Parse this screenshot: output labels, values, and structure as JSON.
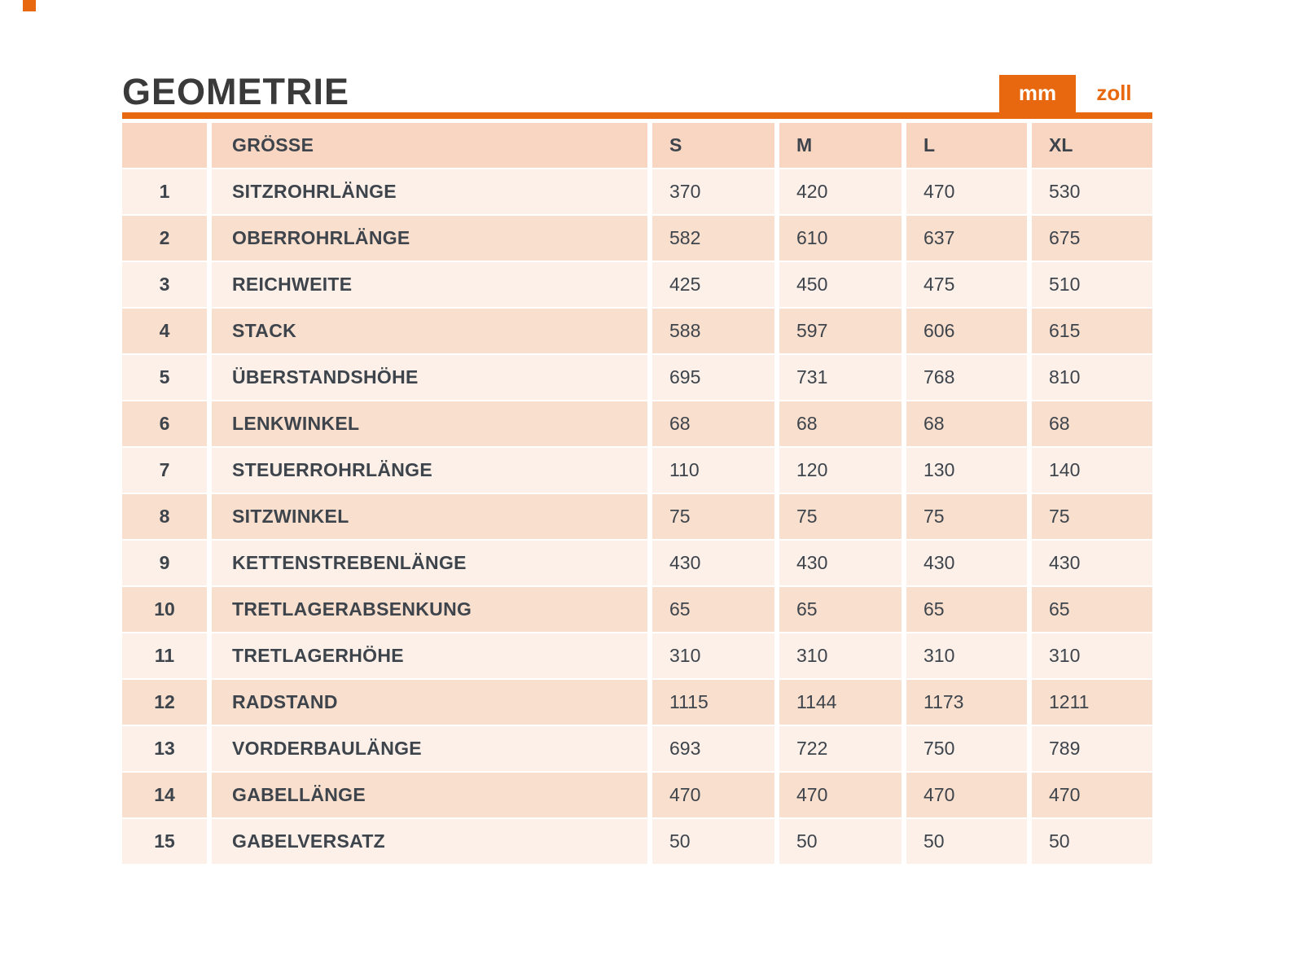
{
  "page": {
    "title": "GEOMETRIE"
  },
  "colors": {
    "accent": "#e8680f",
    "title": "#3a3a3a",
    "text": "#3e444c",
    "header_row_bg": "#f8d6c2",
    "row_shade_bg": "#f9dfcd",
    "row_light_bg": "#fcf0e8"
  },
  "unit_toggle": {
    "options": [
      {
        "label": "mm",
        "selected": true
      },
      {
        "label": "zoll",
        "selected": false
      }
    ]
  },
  "chart_data": {
    "type": "table",
    "title": "GEOMETRIE",
    "unit": "mm",
    "row_header": "GRÖSSE",
    "columns": [
      "S",
      "M",
      "L",
      "XL"
    ],
    "rows": [
      {
        "index": "1",
        "label": "SITZROHRLÄNGE",
        "values": [
          "370",
          "420",
          "470",
          "530"
        ]
      },
      {
        "index": "2",
        "label": "OBERROHRLÄNGE",
        "values": [
          "582",
          "610",
          "637",
          "675"
        ]
      },
      {
        "index": "3",
        "label": "REICHWEITE",
        "values": [
          "425",
          "450",
          "475",
          "510"
        ]
      },
      {
        "index": "4",
        "label": "STACK",
        "values": [
          "588",
          "597",
          "606",
          "615"
        ]
      },
      {
        "index": "5",
        "label": "ÜBERSTANDSHÖHE",
        "values": [
          "695",
          "731",
          "768",
          "810"
        ]
      },
      {
        "index": "6",
        "label": "LENKWINKEL",
        "values": [
          "68",
          "68",
          "68",
          "68"
        ]
      },
      {
        "index": "7",
        "label": "STEUERROHRLÄNGE",
        "values": [
          "110",
          "120",
          "130",
          "140"
        ]
      },
      {
        "index": "8",
        "label": "SITZWINKEL",
        "values": [
          "75",
          "75",
          "75",
          "75"
        ]
      },
      {
        "index": "9",
        "label": "KETTENSTREBENLÄNGE",
        "values": [
          "430",
          "430",
          "430",
          "430"
        ]
      },
      {
        "index": "10",
        "label": "TRETLAGERABSENKUNG",
        "values": [
          "65",
          "65",
          "65",
          "65"
        ]
      },
      {
        "index": "11",
        "label": "TRETLAGERHÖHE",
        "values": [
          "310",
          "310",
          "310",
          "310"
        ]
      },
      {
        "index": "12",
        "label": "RADSTAND",
        "values": [
          "1115",
          "1144",
          "1173",
          "1211"
        ]
      },
      {
        "index": "13",
        "label": "VORDERBAULÄNGE",
        "values": [
          "693",
          "722",
          "750",
          "789"
        ]
      },
      {
        "index": "14",
        "label": "GABELLÄNGE",
        "values": [
          "470",
          "470",
          "470",
          "470"
        ]
      },
      {
        "index": "15",
        "label": "GABELVERSATZ",
        "values": [
          "50",
          "50",
          "50",
          "50"
        ]
      }
    ]
  }
}
